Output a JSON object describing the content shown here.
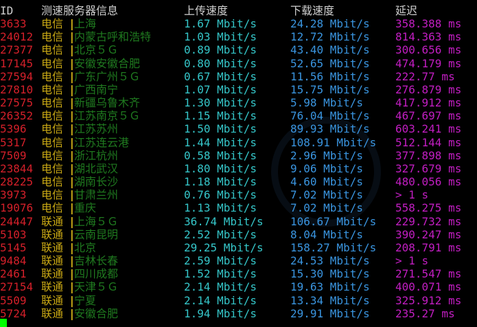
{
  "header": {
    "id": "ID",
    "server": "测速服务器信息",
    "upload": "上传速度",
    "download": "下载速度",
    "latency": "延迟"
  },
  "separator": "|",
  "rows": [
    {
      "id": "3633",
      "isp": "电信",
      "location": "上海",
      "upload": "1.67 Mbit/s",
      "download": "24.28 Mbit/s",
      "latency": "358.388 ms"
    },
    {
      "id": "24012",
      "isp": "电信",
      "location": "内蒙古呼和浩特",
      "upload": "1.03 Mbit/s",
      "download": "12.72 Mbit/s",
      "latency": "814.363 ms"
    },
    {
      "id": "27377",
      "isp": "电信",
      "location": "北京５Ｇ",
      "upload": "0.89 Mbit/s",
      "download": "43.40 Mbit/s",
      "latency": "300.656 ms"
    },
    {
      "id": "17145",
      "isp": "电信",
      "location": "安徽安徽合肥",
      "upload": "0.80 Mbit/s",
      "download": "52.65 Mbit/s",
      "latency": "474.179 ms"
    },
    {
      "id": "27594",
      "isp": "电信",
      "location": "广东广州５Ｇ",
      "upload": "0.67 Mbit/s",
      "download": "11.56 Mbit/s",
      "latency": "222.77 ms"
    },
    {
      "id": "27810",
      "isp": "电信",
      "location": "广西南宁",
      "upload": "1.07 Mbit/s",
      "download": "15.75 Mbit/s",
      "latency": "276.879 ms"
    },
    {
      "id": "27575",
      "isp": "电信",
      "location": "新疆乌鲁木齐",
      "upload": "1.30 Mbit/s",
      "download": "5.98 Mbit/s",
      "latency": "417.912 ms"
    },
    {
      "id": "26352",
      "isp": "电信",
      "location": "江苏南京５Ｇ",
      "upload": "1.15 Mbit/s",
      "download": "76.04 Mbit/s",
      "latency": "467.697 ms"
    },
    {
      "id": "5396",
      "isp": "电信",
      "location": "江苏苏州",
      "upload": "1.50 Mbit/s",
      "download": "89.93 Mbit/s",
      "latency": "603.241 ms"
    },
    {
      "id": "5317",
      "isp": "电信",
      "location": "江苏连云港",
      "upload": "1.44 Mbit/s",
      "download": "108.91 Mbit/s",
      "latency": "512.144 ms"
    },
    {
      "id": "7509",
      "isp": "电信",
      "location": "浙江杭州",
      "upload": "0.58 Mbit/s",
      "download": "2.96 Mbit/s",
      "latency": "377.898 ms"
    },
    {
      "id": "23844",
      "isp": "电信",
      "location": "湖北武汉",
      "upload": "1.80 Mbit/s",
      "download": "9.06 Mbit/s",
      "latency": "327.679 ms"
    },
    {
      "id": "28225",
      "isp": "电信",
      "location": "湖南长沙",
      "upload": "1.18 Mbit/s",
      "download": "4.60 Mbit/s",
      "latency": "480.056 ms"
    },
    {
      "id": "3973",
      "isp": "电信",
      "location": "甘肃兰州",
      "upload": "0.76 Mbit/s",
      "download": "7.02 Mbit/s",
      "latency": "> 1 s"
    },
    {
      "id": "19076",
      "isp": "电信",
      "location": "重庆",
      "upload": "1.13 Mbit/s",
      "download": "7.02 Mbit/s",
      "latency": "558.275 ms"
    },
    {
      "id": "24447",
      "isp": "联通",
      "location": "上海５Ｇ",
      "upload": "36.74 Mbit/s",
      "download": "106.67 Mbit/s",
      "latency": "229.732 ms"
    },
    {
      "id": "5103",
      "isp": "联通",
      "location": "云南昆明",
      "upload": "2.52 Mbit/s",
      "download": "8.04 Mbit/s",
      "latency": "390.247 ms"
    },
    {
      "id": "5145",
      "isp": "联通",
      "location": "北京",
      "upload": "29.25 Mbit/s",
      "download": "158.27 Mbit/s",
      "latency": "208.791 ms"
    },
    {
      "id": "9484",
      "isp": "联通",
      "location": "吉林长春",
      "upload": "2.59 Mbit/s",
      "download": "24.53 Mbit/s",
      "latency": "> 1 s"
    },
    {
      "id": "2461",
      "isp": "联通",
      "location": "四川成都",
      "upload": "1.52 Mbit/s",
      "download": "15.30 Mbit/s",
      "latency": "271.547 ms"
    },
    {
      "id": "27154",
      "isp": "联通",
      "location": "天津５Ｇ",
      "upload": "2.14 Mbit/s",
      "download": "19.63 Mbit/s",
      "latency": "400.071 ms"
    },
    {
      "id": "5509",
      "isp": "联通",
      "location": "宁夏",
      "upload": "2.14 Mbit/s",
      "download": "13.34 Mbit/s",
      "latency": "325.912 ms"
    },
    {
      "id": "5724",
      "isp": "联通",
      "location": "安徽合肥",
      "upload": "1.94 Mbit/s",
      "download": "29.91 Mbit/s",
      "latency": "235.27 ms"
    }
  ]
}
